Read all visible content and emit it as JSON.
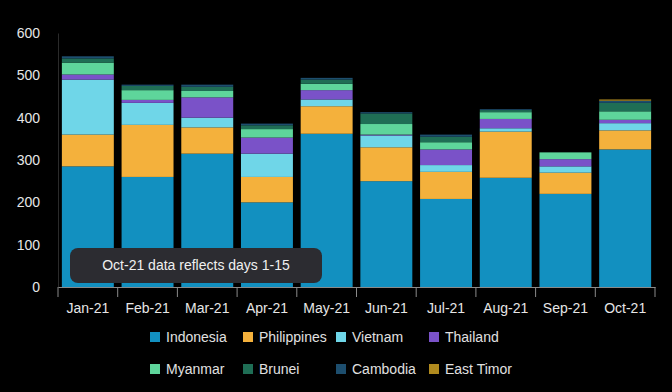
{
  "chart_data": {
    "type": "bar",
    "stacked": true,
    "grid": false,
    "legend": "bottom",
    "annotations": [
      "Oct-21 data reflects days 1-15"
    ],
    "categories": [
      "Jan-21",
      "Feb-21",
      "Mar-21",
      "Apr-21",
      "May-21",
      "Jun-21",
      "Jul-21",
      "Aug-21",
      "Sep-21",
      "Oct-21"
    ],
    "ylim": [
      0,
      600
    ],
    "yticks": [
      0,
      100,
      200,
      300,
      400,
      500,
      600
    ],
    "series": [
      {
        "name": "Indonesia",
        "color": "#1290c0",
        "values": [
          285,
          260,
          315,
          200,
          362,
          250,
          208,
          258,
          220,
          325
        ]
      },
      {
        "name": "Philippines",
        "color": "#f4b13c",
        "values": [
          75,
          123,
          62,
          60,
          65,
          80,
          64,
          109,
          50,
          45
        ]
      },
      {
        "name": "Vietnam",
        "color": "#6fd6e8",
        "values": [
          130,
          52,
          23,
          55,
          16,
          28,
          16,
          8,
          15,
          17
        ]
      },
      {
        "name": "Thailand",
        "color": "#7a52c8",
        "values": [
          12,
          7,
          48,
          38,
          22,
          2,
          37,
          22,
          17,
          8
        ]
      },
      {
        "name": "Myanmar",
        "color": "#5ed59b",
        "values": [
          28,
          23,
          15,
          20,
          15,
          25,
          17,
          16,
          16,
          20
        ]
      },
      {
        "name": "Brunei",
        "color": "#1f6e55",
        "values": [
          10,
          10,
          10,
          9,
          10,
          25,
          13,
          5,
          0,
          20
        ]
      },
      {
        "name": "Cambodia",
        "color": "#1d4e6e",
        "values": [
          5,
          3,
          5,
          4,
          4,
          3,
          5,
          2,
          0,
          5
        ]
      },
      {
        "name": "East Timor",
        "color": "#b08a1e",
        "values": [
          0,
          0,
          0,
          0,
          0,
          0,
          0,
          0,
          0,
          3
        ]
      }
    ]
  }
}
